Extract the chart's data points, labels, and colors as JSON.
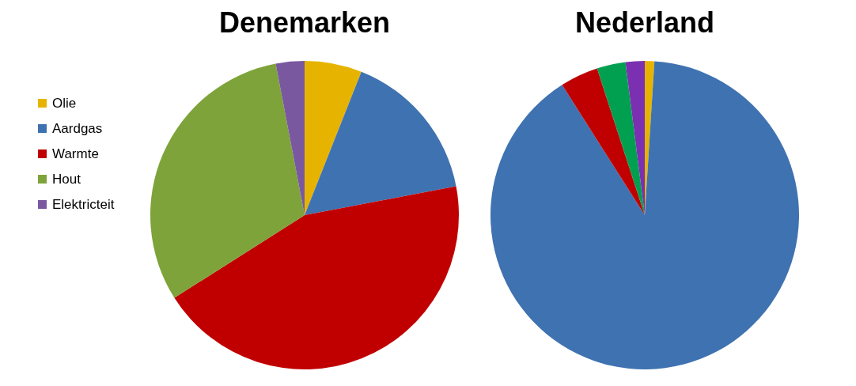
{
  "chart_data": [
    {
      "type": "pie",
      "title": "Denemarken",
      "categories": [
        "Olie",
        "Aardgas",
        "Warmte",
        "Hout",
        "Elektricteit"
      ],
      "values": [
        6,
        16,
        44,
        31,
        3
      ],
      "colors": [
        "#e6b400",
        "#3f72b0",
        "#c00000",
        "#7ea33a",
        "#7a58a0"
      ],
      "legend": "left"
    },
    {
      "type": "pie",
      "title": "Nederland",
      "categories": [
        null,
        null,
        null,
        null,
        null
      ],
      "values": [
        1,
        90,
        4,
        3,
        2
      ],
      "colors": [
        "#e6b400",
        "#3f72b0",
        "#c00000",
        "#00a050",
        "#7a30b0"
      ]
    }
  ]
}
